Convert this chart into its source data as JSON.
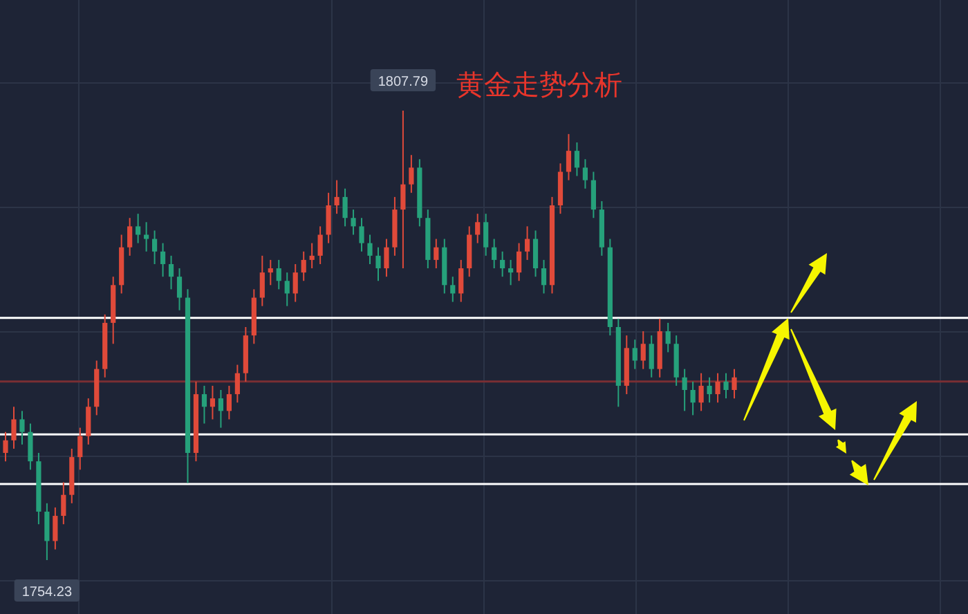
{
  "chart_data": {
    "type": "candlestick",
    "title": "黄金走势分析",
    "grid": true,
    "categories": [
      null,
      null,
      null,
      null,
      null,
      null,
      null,
      null,
      null,
      null,
      null,
      null,
      null,
      null,
      null,
      null,
      null,
      null,
      null,
      null,
      null,
      null,
      null,
      null,
      null,
      null,
      null,
      null,
      null,
      null,
      null,
      null,
      null,
      null,
      null,
      null,
      null,
      null,
      null,
      null,
      null,
      null,
      null,
      null,
      null,
      null,
      null,
      null,
      null,
      null,
      null,
      null,
      null,
      null,
      null,
      null,
      null,
      null,
      null,
      null,
      null,
      null,
      null,
      null,
      null,
      null,
      null,
      null,
      null,
      null,
      null,
      null,
      null,
      null,
      null,
      null,
      null,
      null,
      null,
      null,
      null,
      null,
      null,
      null,
      null,
      null,
      null,
      null,
      null
    ],
    "ohlc": [
      [
        1767.0,
        1769.5,
        1766.0,
        1768.5
      ],
      [
        1768.5,
        1772.5,
        1767.5,
        1771.0
      ],
      [
        1771.0,
        1772.0,
        1768.0,
        1769.5
      ],
      [
        1769.5,
        1770.5,
        1765.0,
        1766.0
      ],
      [
        1766.0,
        1767.0,
        1758.5,
        1760.0
      ],
      [
        1760.0,
        1761.0,
        1754.23,
        1756.5
      ],
      [
        1756.5,
        1760.5,
        1755.5,
        1759.5
      ],
      [
        1759.5,
        1763.5,
        1758.5,
        1762.0
      ],
      [
        1762.0,
        1767.5,
        1761.0,
        1766.5
      ],
      [
        1766.5,
        1770.0,
        1765.0,
        1769.0
      ],
      [
        1769.0,
        1773.5,
        1768.0,
        1772.5
      ],
      [
        1772.5,
        1778.0,
        1771.5,
        1777.0
      ],
      [
        1777.0,
        1783.5,
        1776.0,
        1782.5
      ],
      [
        1782.5,
        1788.0,
        1780.0,
        1787.0
      ],
      [
        1787.0,
        1793.0,
        1786.0,
        1791.5
      ],
      [
        1791.5,
        1795.0,
        1790.5,
        1794.0
      ],
      [
        1794.0,
        1795.5,
        1792.0,
        1793.0
      ],
      [
        1793.0,
        1794.5,
        1791.0,
        1792.5
      ],
      [
        1792.5,
        1793.5,
        1789.5,
        1791.0
      ],
      [
        1791.0,
        1792.0,
        1788.0,
        1789.5
      ],
      [
        1789.5,
        1790.5,
        1786.5,
        1788.0
      ],
      [
        1788.0,
        1789.0,
        1784.0,
        1785.5
      ],
      [
        1785.5,
        1786.5,
        1763.4,
        1767.0
      ],
      [
        1767.0,
        1775.5,
        1766.0,
        1774.0
      ],
      [
        1774.0,
        1775.0,
        1770.5,
        1772.5
      ],
      [
        1772.5,
        1775.0,
        1771.0,
        1773.5
      ],
      [
        1773.5,
        1774.5,
        1770.0,
        1772.0
      ],
      [
        1772.0,
        1775.0,
        1771.0,
        1774.0
      ],
      [
        1774.0,
        1777.5,
        1773.0,
        1776.5
      ],
      [
        1776.5,
        1782.0,
        1775.5,
        1781.0
      ],
      [
        1781.0,
        1786.5,
        1780.0,
        1785.5
      ],
      [
        1785.5,
        1790.5,
        1784.5,
        1788.5
      ],
      [
        1788.5,
        1790.0,
        1787.0,
        1789.0
      ],
      [
        1789.0,
        1790.0,
        1786.5,
        1787.5
      ],
      [
        1787.5,
        1788.5,
        1784.5,
        1786.0
      ],
      [
        1786.0,
        1789.5,
        1785.0,
        1788.5
      ],
      [
        1788.5,
        1791.0,
        1787.5,
        1790.0
      ],
      [
        1790.0,
        1792.0,
        1789.0,
        1790.5
      ],
      [
        1790.5,
        1794.0,
        1789.5,
        1793.0
      ],
      [
        1793.0,
        1798.0,
        1792.0,
        1796.5
      ],
      [
        1796.5,
        1799.5,
        1795.5,
        1797.5
      ],
      [
        1797.5,
        1798.5,
        1794.0,
        1795.0
      ],
      [
        1795.0,
        1796.0,
        1793.0,
        1794.0
      ],
      [
        1794.0,
        1795.0,
        1791.0,
        1792.0
      ],
      [
        1792.0,
        1793.0,
        1789.5,
        1790.5
      ],
      [
        1790.5,
        1791.5,
        1787.5,
        1789.0
      ],
      [
        1789.0,
        1792.5,
        1788.0,
        1791.5
      ],
      [
        1791.5,
        1797.5,
        1790.5,
        1796.0
      ],
      [
        1796.0,
        1807.79,
        1789.0,
        1799.0
      ],
      [
        1799.0,
        1802.5,
        1798.0,
        1801.0
      ],
      [
        1801.0,
        1802.0,
        1794.0,
        1795.0
      ],
      [
        1795.0,
        1796.0,
        1789.0,
        1790.0
      ],
      [
        1790.0,
        1792.5,
        1789.0,
        1791.5
      ],
      [
        1791.5,
        1792.5,
        1786.0,
        1787.0
      ],
      [
        1787.0,
        1788.0,
        1785.0,
        1786.0
      ],
      [
        1786.0,
        1790.0,
        1785.0,
        1789.0
      ],
      [
        1789.0,
        1794.0,
        1788.0,
        1793.0
      ],
      [
        1793.0,
        1795.5,
        1792.0,
        1794.5
      ],
      [
        1794.5,
        1795.5,
        1790.5,
        1791.5
      ],
      [
        1791.5,
        1792.5,
        1789.0,
        1790.0
      ],
      [
        1790.0,
        1791.0,
        1788.0,
        1789.0
      ],
      [
        1789.0,
        1790.0,
        1787.0,
        1788.5
      ],
      [
        1788.5,
        1792.0,
        1787.5,
        1791.0
      ],
      [
        1791.0,
        1794.0,
        1790.0,
        1792.5
      ],
      [
        1792.5,
        1793.5,
        1788.0,
        1789.0
      ],
      [
        1789.0,
        1790.0,
        1786.0,
        1787.0
      ],
      [
        1787.0,
        1797.5,
        1786.0,
        1796.5
      ],
      [
        1796.5,
        1801.5,
        1795.5,
        1800.5
      ],
      [
        1800.5,
        1805.0,
        1799.5,
        1803.0
      ],
      [
        1803.0,
        1804.0,
        1800.0,
        1801.0
      ],
      [
        1801.0,
        1802.0,
        1798.5,
        1799.5
      ],
      [
        1799.5,
        1800.5,
        1795.0,
        1796.0
      ],
      [
        1796.0,
        1797.0,
        1790.5,
        1791.5
      ],
      [
        1791.5,
        1792.5,
        1781.0,
        1782.0
      ],
      [
        1782.0,
        1783.0,
        1772.5,
        1775.0
      ],
      [
        1775.0,
        1781.0,
        1774.0,
        1779.5
      ],
      [
        1779.5,
        1780.5,
        1777.0,
        1778.0
      ],
      [
        1778.0,
        1781.5,
        1777.0,
        1780.0
      ],
      [
        1780.0,
        1781.0,
        1776.0,
        1777.0
      ],
      [
        1777.0,
        1783.0,
        1776.0,
        1781.5
      ],
      [
        1781.5,
        1782.5,
        1779.0,
        1780.0
      ],
      [
        1780.0,
        1781.0,
        1775.0,
        1776.0
      ],
      [
        1776.0,
        1777.0,
        1772.0,
        1774.5
      ],
      [
        1774.5,
        1775.5,
        1771.5,
        1773.0
      ],
      [
        1773.0,
        1776.5,
        1772.0,
        1775.0
      ],
      [
        1775.0,
        1776.0,
        1773.0,
        1774.0
      ],
      [
        1774.0,
        1776.5,
        1773.0,
        1775.5
      ],
      [
        1775.5,
        1776.5,
        1773.5,
        1774.5
      ],
      [
        1774.5,
        1777.0,
        1773.5,
        1776.0
      ]
    ],
    "colors": [
      "#e04a3a",
      "#e04a3a",
      "#26a17b",
      "#26a17b",
      "#26a17b",
      "#26a17b",
      "#e04a3a",
      "#e04a3a",
      "#e04a3a",
      "#e04a3a",
      "#e04a3a",
      "#e04a3a",
      "#e04a3a",
      "#e04a3a",
      "#e04a3a",
      "#e04a3a",
      "#26a17b",
      "#26a17b",
      "#26a17b",
      "#26a17b",
      "#26a17b",
      "#26a17b",
      "#26a17b",
      "#e04a3a",
      "#26a17b",
      "#e04a3a",
      "#26a17b",
      "#e04a3a",
      "#e04a3a",
      "#e04a3a",
      "#e04a3a",
      "#e04a3a",
      "#e04a3a",
      "#26a17b",
      "#26a17b",
      "#e04a3a",
      "#e04a3a",
      "#e04a3a",
      "#e04a3a",
      "#e04a3a",
      "#e04a3a",
      "#26a17b",
      "#26a17b",
      "#26a17b",
      "#26a17b",
      "#26a17b",
      "#e04a3a",
      "#e04a3a",
      "#e04a3a",
      "#e04a3a",
      "#26a17b",
      "#26a17b",
      "#e04a3a",
      "#26a17b",
      "#26a17b",
      "#e04a3a",
      "#e04a3a",
      "#e04a3a",
      "#26a17b",
      "#26a17b",
      "#26a17b",
      "#26a17b",
      "#e04a3a",
      "#e04a3a",
      "#26a17b",
      "#26a17b",
      "#e04a3a",
      "#e04a3a",
      "#e04a3a",
      "#26a17b",
      "#26a17b",
      "#26a17b",
      "#26a17b",
      "#26a17b",
      "#26a17b",
      "#e04a3a",
      "#26a17b",
      "#e04a3a",
      "#26a17b",
      "#e04a3a",
      "#26a17b",
      "#26a17b",
      "#26a17b",
      "#26a17b",
      "#e04a3a",
      "#26a17b",
      "#e04a3a",
      "#26a17b",
      "#e04a3a"
    ],
    "ref_lines": [
      {
        "axis": "y",
        "value": 1783.1,
        "color": "#ffffff"
      },
      {
        "axis": "y",
        "value": 1769.2,
        "color": "#ffffff"
      },
      {
        "axis": "y",
        "value": 1763.3,
        "color": "#ffffff"
      },
      {
        "axis": "y",
        "value": 1775.5,
        "color": "#7a2e33"
      }
    ],
    "annotations": [
      {
        "text": "1807.79",
        "y": 1807.79
      },
      {
        "text": "1754.23",
        "y": 1754.23
      }
    ]
  }
}
